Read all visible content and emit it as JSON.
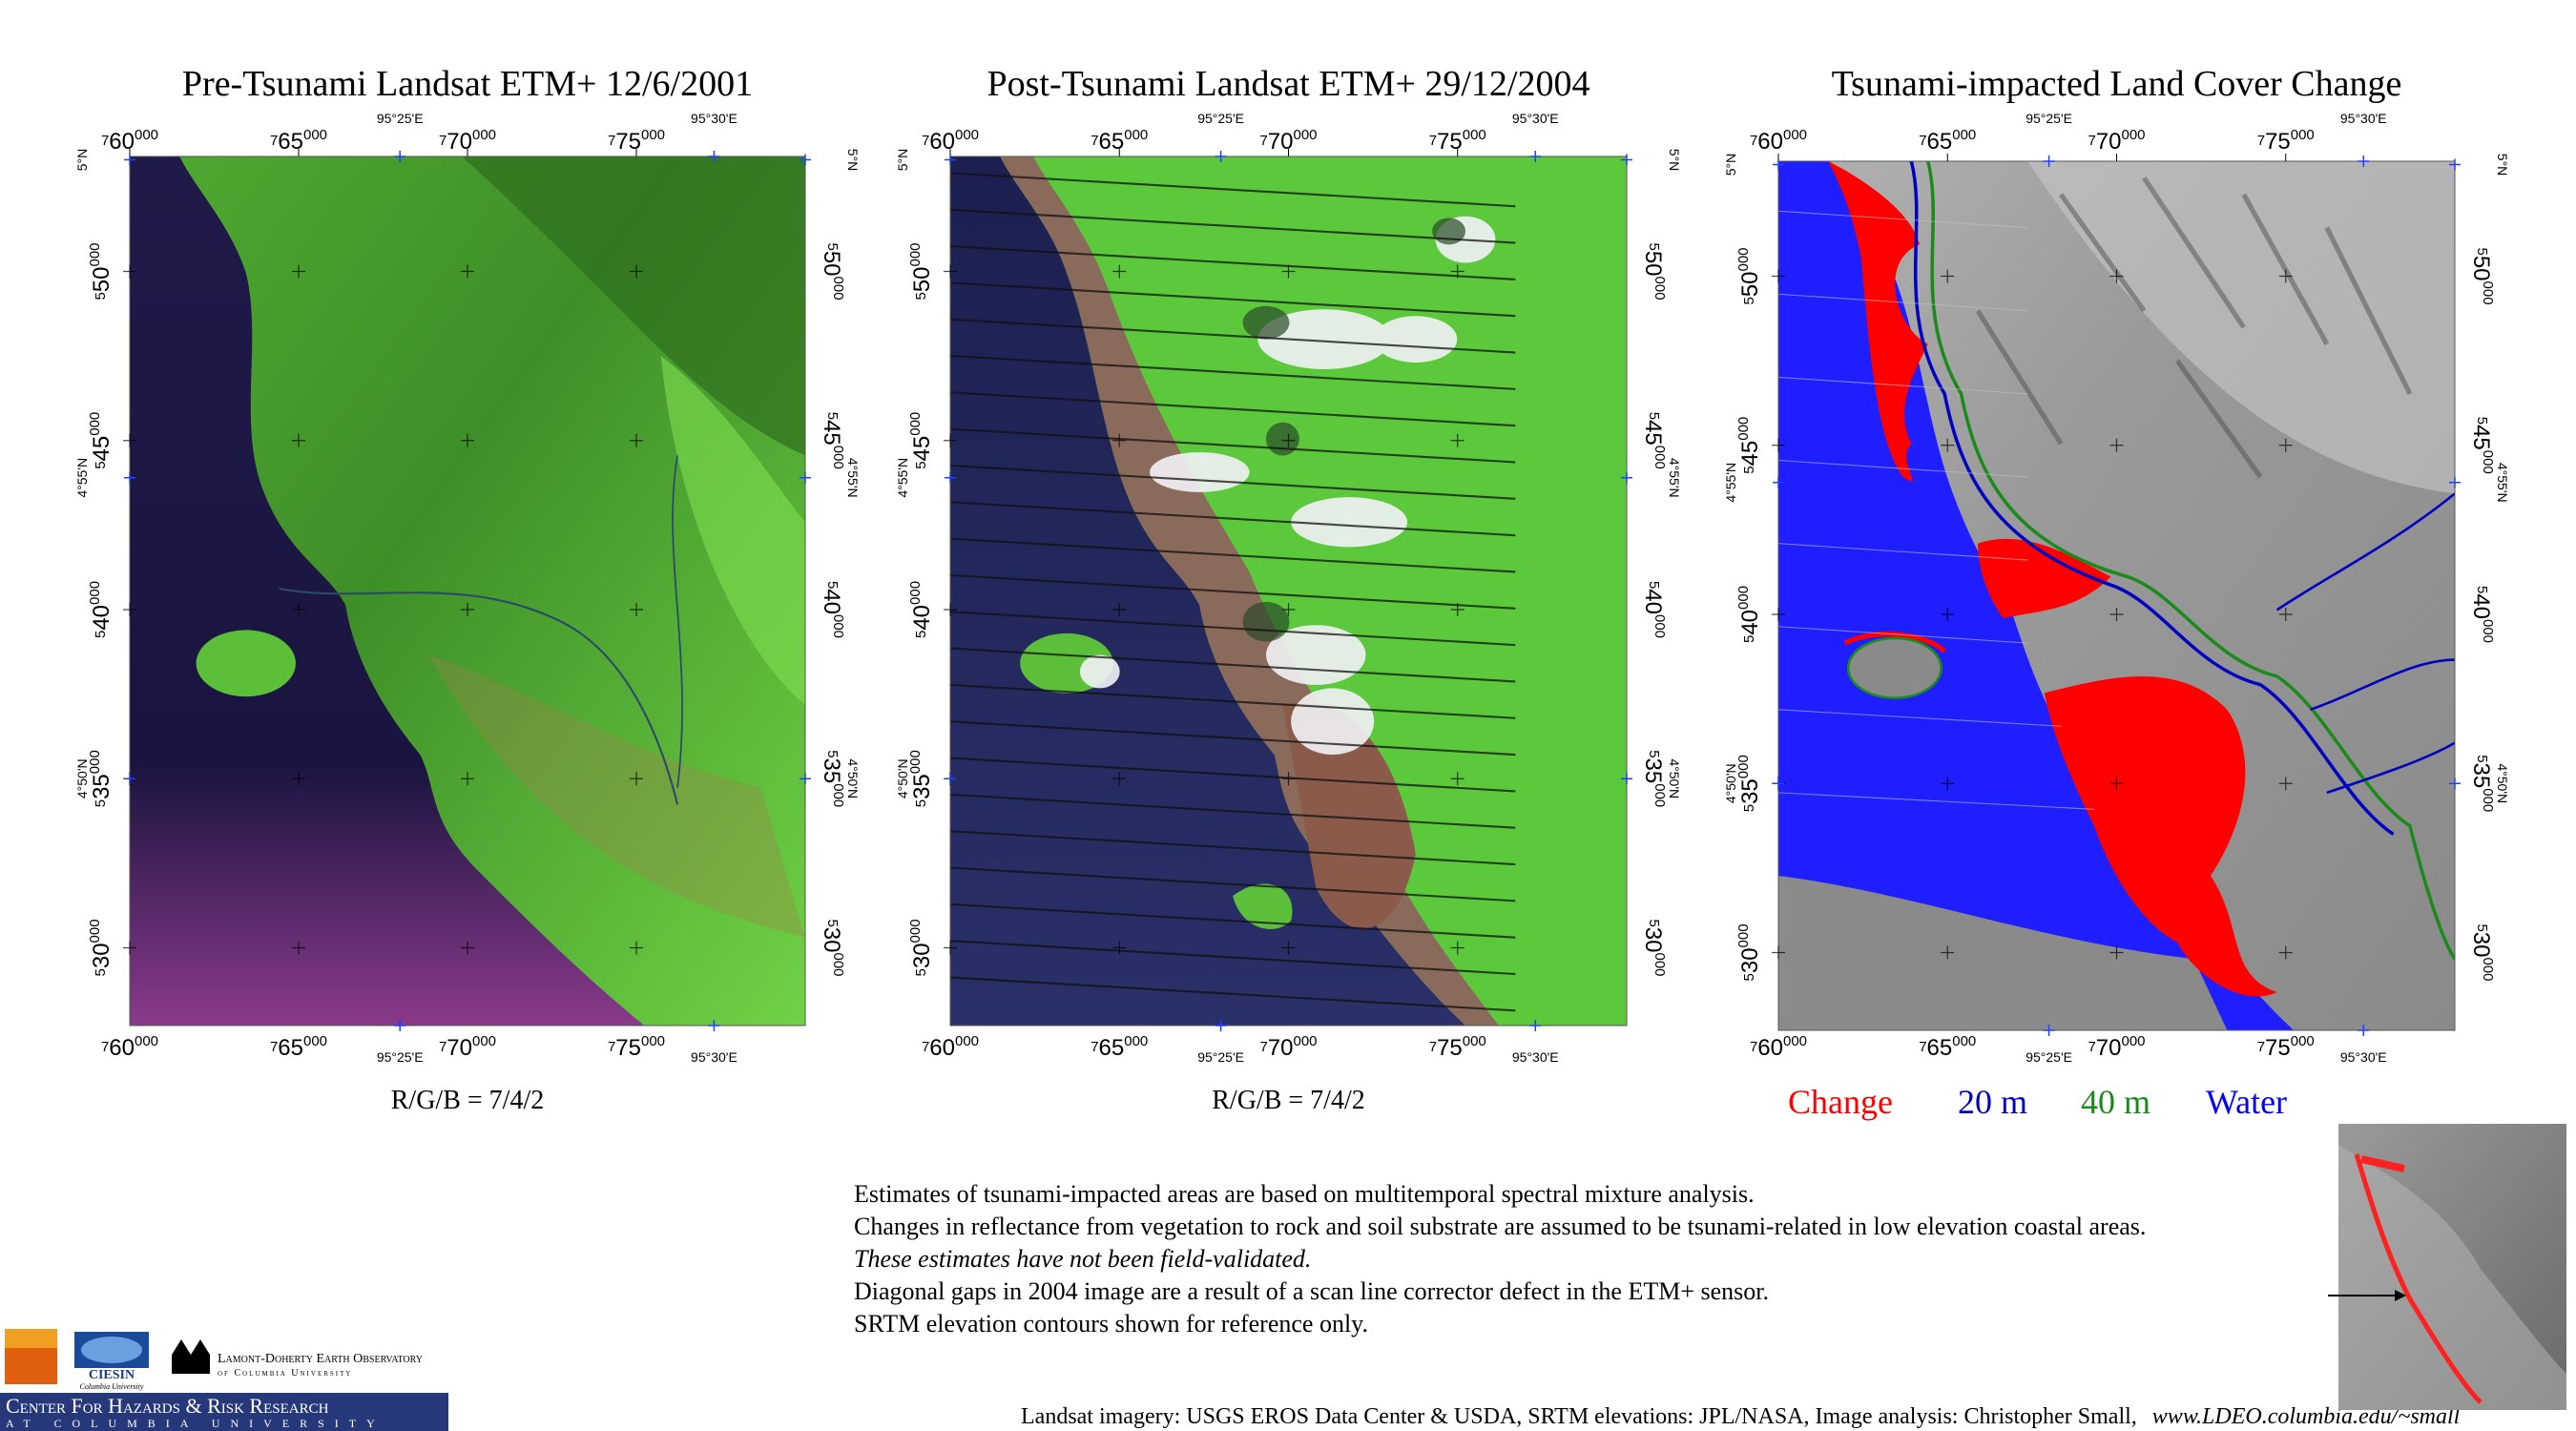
{
  "panels": [
    {
      "title": "Pre-Tsunami  Landsat ETM+    12/6/2001",
      "caption": "R/G/B = 7/4/2"
    },
    {
      "title": "Post-Tsunami  Landsat ETM+  29/12/2004",
      "caption": "R/G/B = 7/4/2"
    },
    {
      "title": "Tsunami-impacted Land Cover Change",
      "legend": [
        {
          "label": "Change",
          "color": "#ff0000"
        },
        {
          "label": "20 m",
          "color": "#0000c0"
        },
        {
          "label": "40 m",
          "color": "#1a8a1a"
        },
        {
          "label": "Water",
          "color": "#0000ff"
        }
      ]
    }
  ],
  "map_grid": {
    "easting_range": [
      760000,
      780000
    ],
    "northing_range": [
      527700,
      553400
    ],
    "easting_ticks": [
      760000,
      765000,
      770000,
      775000
    ],
    "northing_ticks": [
      550000,
      545000,
      540000,
      535000,
      530000
    ],
    "longitude_ticks": [
      {
        "value": 768000,
        "label": "95°25'E"
      },
      {
        "value": 777300,
        "label": "95°30'E"
      }
    ],
    "latitude_ticks": [
      {
        "value": 553300,
        "label": "5°N"
      },
      {
        "value": 543900,
        "label": "4°55'N"
      },
      {
        "value": 535000,
        "label": "4°50'N"
      }
    ]
  },
  "notes": [
    "Estimates of tsunami-impacted areas are based on multitemporal spectral mixture analysis.",
    "Changes in reflectance from vegetation to rock and soil substrate are assumed to be tsunami-related in low elevation coastal areas.",
    "These estimates have not been field-validated.",
    "Diagonal gaps in 2004 image are a result of a scan line corrector defect in the ETM+ sensor.",
    "SRTM elevation contours shown for reference only."
  ],
  "credits": {
    "text": "Landsat imagery: USGS EROS Data Center & USDA,  SRTM elevations: JPL/NASA,   Image analysis:  Christopher Small,",
    "url": "www.LDEO.columbia.edu/~small"
  },
  "logos": {
    "ciesin": "CIESIN",
    "ciesin_sub": "Columbia University",
    "lamont": "Lamont-Doherty Earth Observatory",
    "lamont_sub": "of Columbia University",
    "center": "Center For Hazards & Risk Research",
    "center_sub": "at Columbia University"
  }
}
